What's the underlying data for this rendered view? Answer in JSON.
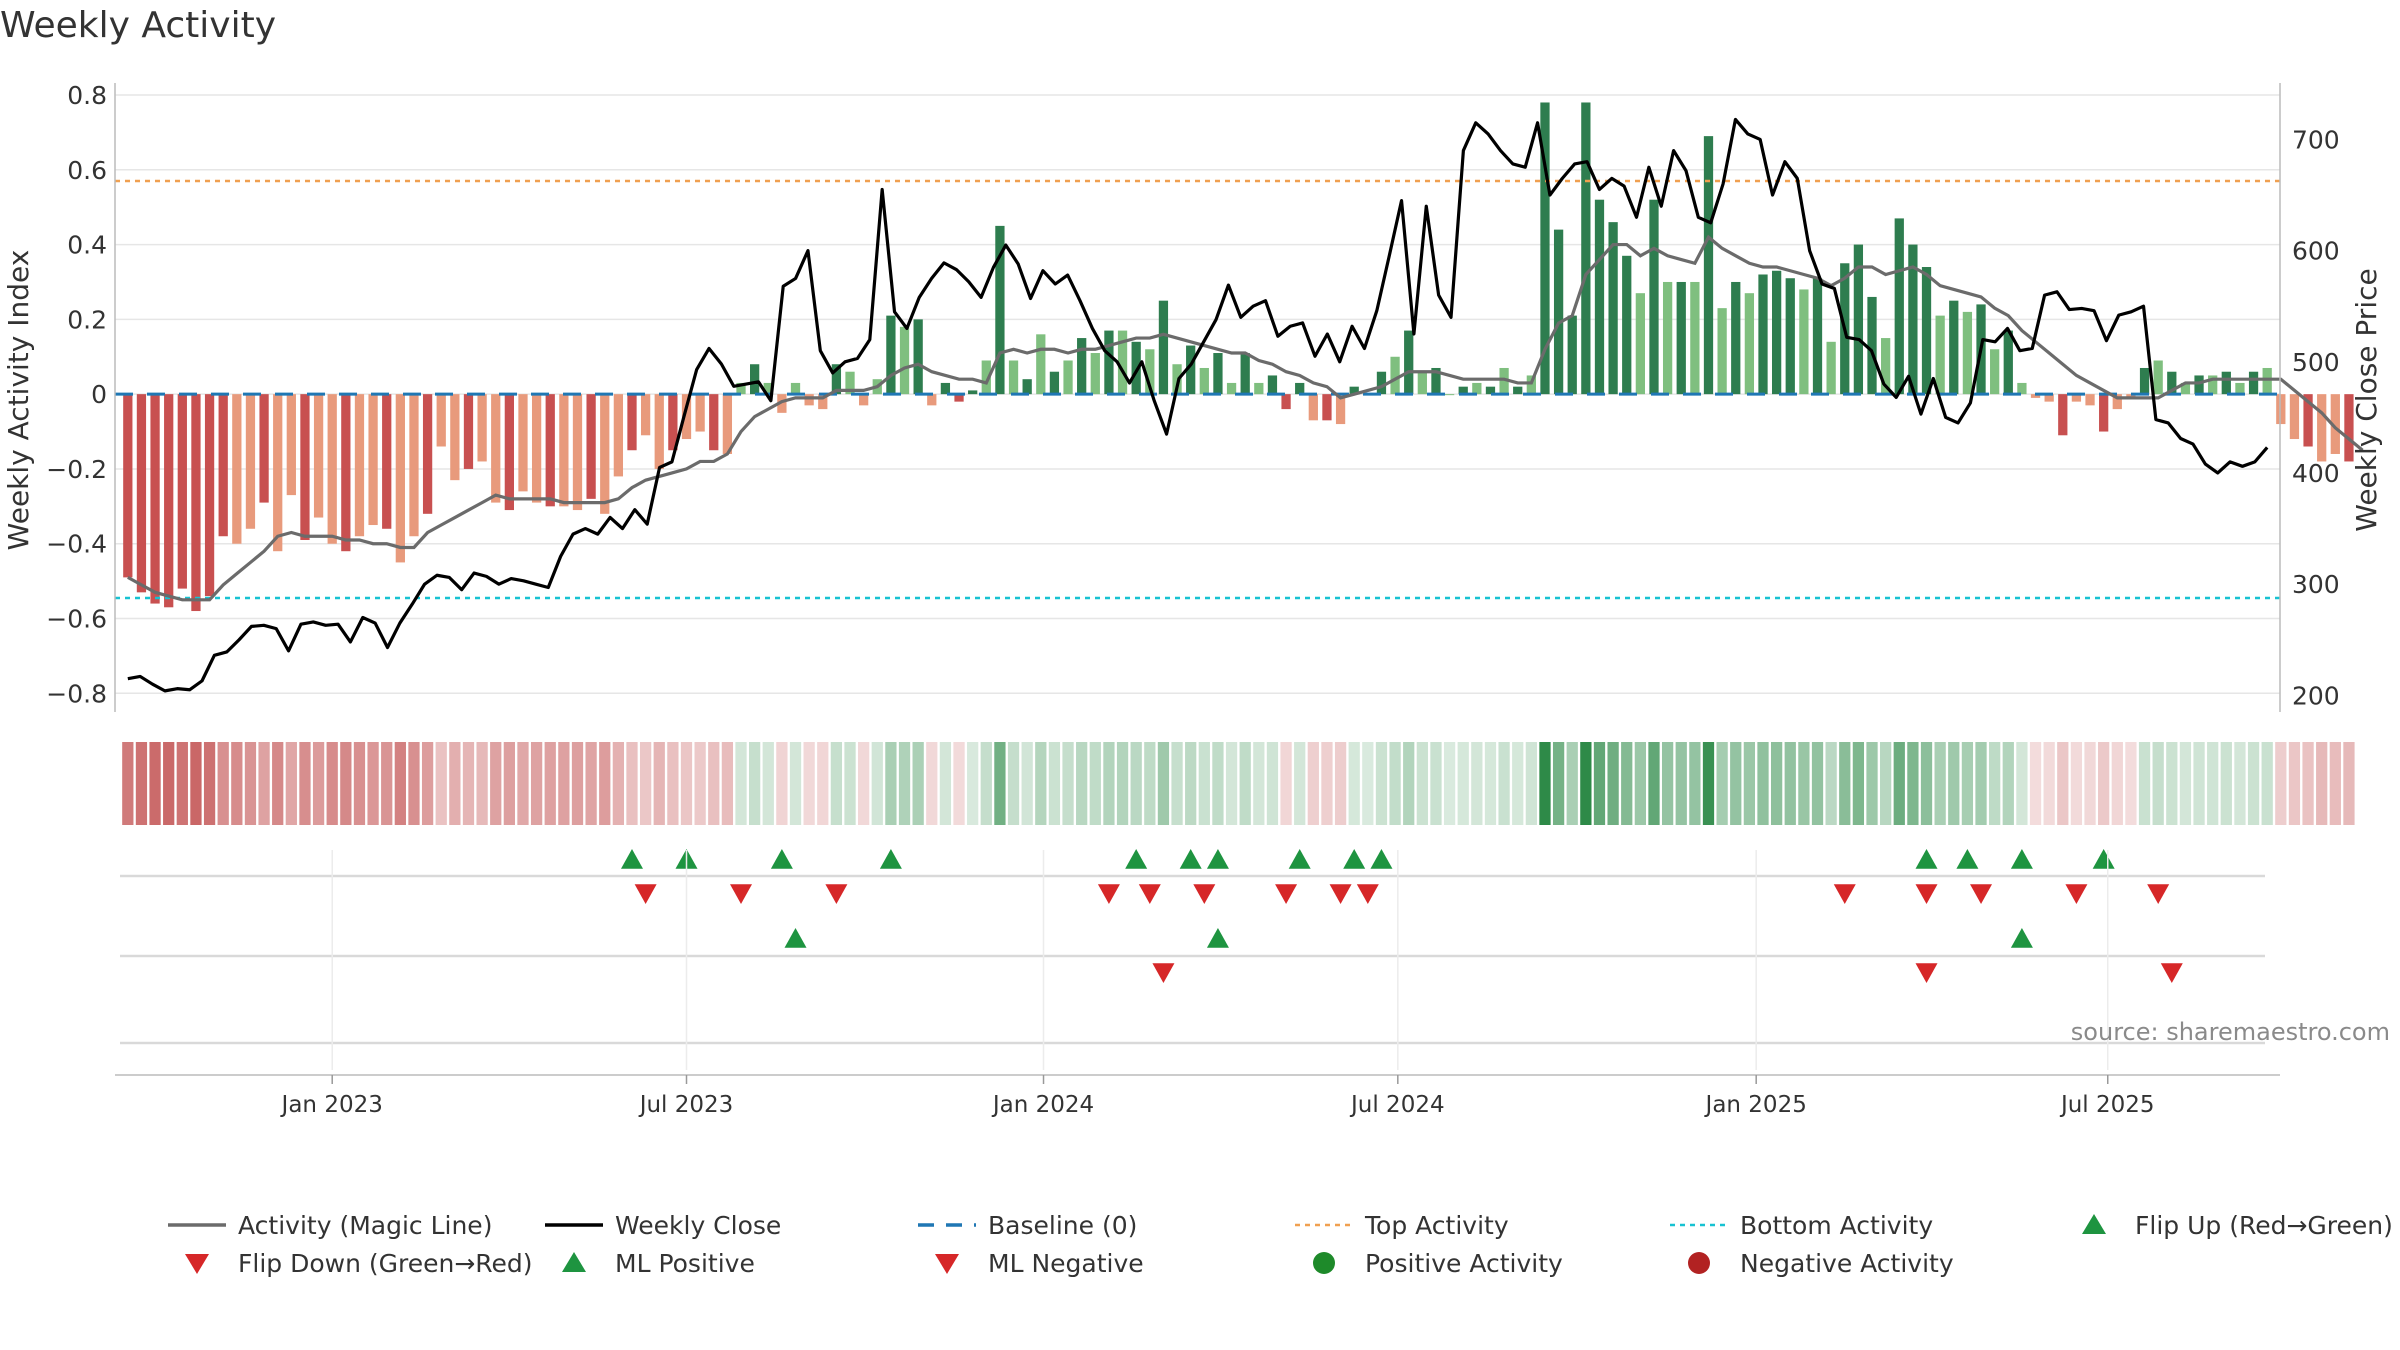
{
  "chart_data": {
    "type": "bar",
    "title": "Weekly Activity",
    "ylabel_left": "Weekly Activity Index",
    "ylabel_right": "Weekly Close Price",
    "source": "source: sharemaestro.com",
    "ylim_left": [
      -0.85,
      0.8
    ],
    "ylim_right": [
      185,
      740
    ],
    "yticks_left": [
      0.8,
      0.6,
      0.4,
      0.2,
      0,
      -0.2,
      -0.4,
      -0.6,
      -0.8
    ],
    "yticks_left_labels": [
      "0.8",
      "0.6",
      "0.4",
      "0.2",
      "0",
      "−0.2",
      "−0.4",
      "−0.6",
      "−0.8"
    ],
    "yticks_right": [
      700,
      600,
      500,
      400,
      300,
      200
    ],
    "yticks_right_labels": [
      "700",
      "600",
      "500",
      "400",
      "300",
      "200"
    ],
    "xticks": [
      {
        "label": "Jan 2023",
        "week": 15
      },
      {
        "label": "Jul 2023",
        "week": 41
      },
      {
        "label": "Jan 2024",
        "week": 67.2
      },
      {
        "label": "Jul 2024",
        "week": 93.2
      },
      {
        "label": "Jan 2025",
        "week": 119.5
      },
      {
        "label": "Jul 2025",
        "week": 145.3
      }
    ],
    "n_weeks": 158,
    "top_activity": 0.57,
    "bottom_activity": -0.545,
    "baseline": 0,
    "activity": [
      -0.49,
      -0.53,
      -0.56,
      -0.57,
      -0.52,
      -0.58,
      -0.54,
      -0.38,
      -0.4,
      -0.36,
      -0.29,
      -0.42,
      -0.27,
      -0.39,
      -0.33,
      -0.4,
      -0.42,
      -0.38,
      -0.35,
      -0.36,
      -0.45,
      -0.38,
      -0.32,
      -0.14,
      -0.23,
      -0.2,
      -0.18,
      -0.29,
      -0.31,
      -0.26,
      -0.29,
      -0.3,
      -0.3,
      -0.31,
      -0.28,
      -0.32,
      -0.22,
      -0.15,
      -0.11,
      -0.2,
      -0.15,
      -0.12,
      -0.1,
      -0.15,
      -0.16,
      0.03,
      0.08,
      0.03,
      -0.05,
      0.03,
      -0.03,
      -0.04,
      0.08,
      0.06,
      -0.03,
      0.04,
      0.21,
      0.18,
      0.2,
      -0.03,
      0.03,
      -0.02,
      0.01,
      0.09,
      0.45,
      0.09,
      0.04,
      0.16,
      0.06,
      0.09,
      0.15,
      0.11,
      0.17,
      0.17,
      0.14,
      0.12,
      0.25,
      0.08,
      0.13,
      0.07,
      0.11,
      0.03,
      0.11,
      0.03,
      0.05,
      -0.04,
      0.03,
      -0.07,
      -0.07,
      -0.08,
      0.02,
      0.0,
      0.06,
      0.1,
      0.17,
      0.06,
      0.07,
      0.0,
      0.02,
      0.03,
      0.02,
      0.07,
      0.02,
      0.05,
      0.78,
      0.44,
      0.21,
      0.78,
      0.52,
      0.46,
      0.37,
      0.27,
      0.52,
      0.3,
      0.3,
      0.3,
      0.69,
      0.23,
      0.3,
      0.27,
      0.32,
      0.33,
      0.31,
      0.28,
      0.31,
      0.14,
      0.35,
      0.4,
      0.26,
      0.15,
      0.47,
      0.4,
      0.34,
      0.21,
      0.25,
      0.22,
      0.24,
      0.12,
      0.17,
      0.03,
      -0.01,
      -0.02,
      -0.11,
      -0.02,
      -0.03,
      -0.1,
      -0.04,
      -0.01,
      0.07,
      0.09,
      0.06,
      0.03,
      0.05,
      0.05,
      0.06,
      0.03,
      0.06,
      0.07,
      -0.08,
      -0.12,
      -0.14,
      -0.18,
      -0.16,
      -0.18
    ],
    "magic_line": [
      -0.49,
      -0.51,
      -0.53,
      -0.54,
      -0.55,
      -0.55,
      -0.55,
      -0.51,
      -0.48,
      -0.45,
      -0.42,
      -0.38,
      -0.37,
      -0.38,
      -0.38,
      -0.38,
      -0.39,
      -0.39,
      -0.4,
      -0.4,
      -0.41,
      -0.41,
      -0.37,
      -0.35,
      -0.33,
      -0.31,
      -0.29,
      -0.27,
      -0.28,
      -0.28,
      -0.28,
      -0.28,
      -0.29,
      -0.29,
      -0.29,
      -0.29,
      -0.28,
      -0.25,
      -0.23,
      -0.22,
      -0.21,
      -0.2,
      -0.18,
      -0.18,
      -0.16,
      -0.1,
      -0.06,
      -0.04,
      -0.02,
      -0.01,
      -0.01,
      -0.01,
      0.01,
      0.01,
      0.01,
      0.02,
      0.05,
      0.07,
      0.08,
      0.06,
      0.05,
      0.04,
      0.04,
      0.03,
      0.11,
      0.12,
      0.11,
      0.12,
      0.12,
      0.11,
      0.12,
      0.12,
      0.13,
      0.14,
      0.15,
      0.15,
      0.16,
      0.15,
      0.14,
      0.13,
      0.12,
      0.11,
      0.11,
      0.09,
      0.08,
      0.06,
      0.05,
      0.03,
      0.02,
      -0.01,
      0.0,
      0.01,
      0.02,
      0.04,
      0.06,
      0.06,
      0.06,
      0.05,
      0.04,
      0.04,
      0.04,
      0.04,
      0.03,
      0.03,
      0.12,
      0.19,
      0.21,
      0.32,
      0.36,
      0.4,
      0.4,
      0.37,
      0.39,
      0.37,
      0.36,
      0.35,
      0.42,
      0.39,
      0.37,
      0.35,
      0.34,
      0.34,
      0.33,
      0.32,
      0.31,
      0.29,
      0.31,
      0.34,
      0.34,
      0.32,
      0.33,
      0.34,
      0.32,
      0.29,
      0.28,
      0.27,
      0.26,
      0.23,
      0.21,
      0.17,
      0.14,
      0.11,
      0.08,
      0.05,
      0.03,
      0.01,
      -0.01,
      -0.01,
      -0.01,
      -0.01,
      0.01,
      0.03,
      0.03,
      0.04,
      0.04,
      0.04,
      0.04,
      0.04,
      0.04,
      0.01,
      -0.02,
      -0.05,
      -0.09,
      -0.12,
      -0.15
    ],
    "weekly_close": [
      215,
      217,
      210,
      204,
      206,
      205,
      213,
      236,
      239,
      250,
      262,
      263,
      260,
      240,
      264,
      266,
      263,
      264,
      248,
      270,
      265,
      243,
      265,
      282,
      300,
      308,
      306,
      295,
      310,
      307,
      300,
      305,
      303,
      300,
      297,
      325,
      345,
      350,
      345,
      360,
      350,
      367,
      354,
      405,
      410,
      452,
      493,
      512,
      498,
      478,
      480,
      482,
      465,
      568,
      575,
      600,
      510,
      490,
      500,
      503,
      520,
      655,
      545,
      530,
      558,
      575,
      589,
      583,
      572,
      558,
      585,
      605,
      588,
      557,
      582,
      570,
      578,
      555,
      530,
      510,
      500,
      481,
      500,
      465,
      435,
      485,
      498,
      518,
      538,
      569,
      540,
      550,
      555,
      523,
      532,
      535,
      505,
      525,
      500,
      532,
      512,
      546,
      595,
      645,
      525,
      640,
      560,
      540,
      690,
      715,
      705,
      690,
      678,
      675,
      715,
      650,
      665,
      678,
      680,
      655,
      665,
      658,
      630,
      675,
      640,
      690,
      672,
      630,
      625,
      660,
      718,
      705,
      700,
      650,
      680,
      665,
      600,
      570,
      566,
      522,
      520,
      510,
      480,
      468,
      487,
      453,
      485,
      450,
      445,
      463,
      520,
      518,
      530,
      510,
      512,
      560,
      563,
      547,
      548,
      546,
      519,
      542,
      545,
      550,
      448,
      445,
      431,
      426,
      408,
      400,
      410,
      406,
      410,
      423
    ],
    "flip_up_weeks": [
      37,
      41,
      48,
      56,
      74,
      78,
      80,
      86,
      90,
      92,
      132,
      135,
      139,
      145
    ],
    "flip_down_weeks": [
      38,
      45,
      52,
      72,
      75,
      79,
      85,
      89,
      91,
      126,
      132,
      136,
      143,
      149
    ],
    "ml_positive_weeks": [
      49,
      80,
      139
    ],
    "ml_negative_weeks": [
      76,
      132,
      150
    ],
    "legend": [
      {
        "label": "Activity (Magic Line)",
        "marker": "line",
        "color": "#6b6b6b"
      },
      {
        "label": "Weekly Close",
        "marker": "line",
        "color": "#000000"
      },
      {
        "label": "Baseline (0)",
        "marker": "dash",
        "color": "#1f77b4"
      },
      {
        "label": "Top Activity",
        "marker": "dot",
        "color": "#f0a050"
      },
      {
        "label": "Bottom Activity",
        "marker": "dot",
        "color": "#17c2d2"
      },
      {
        "label": "Flip Up (Red→Green)",
        "marker": "tri-up",
        "color": "#1e9440"
      },
      {
        "label": "Flip Down (Green→Red)",
        "marker": "tri-down",
        "color": "#d62728"
      },
      {
        "label": "ML Positive",
        "marker": "tri-up",
        "color": "#1e9440"
      },
      {
        "label": "ML Negative",
        "marker": "tri-down",
        "color": "#d62728"
      },
      {
        "label": "Positive Activity",
        "marker": "circle",
        "color": "#1e8a2a"
      },
      {
        "label": "Negative Activity",
        "marker": "circle",
        "color": "#b22222"
      }
    ],
    "colors": {
      "pos_strong": "#2e7d4f",
      "pos_weak": "#7fbf7f",
      "neg_strong": "#c85050",
      "neg_weak": "#e89a7c",
      "grid": "#e6e6e6",
      "axis": "#bbbbbb"
    }
  }
}
